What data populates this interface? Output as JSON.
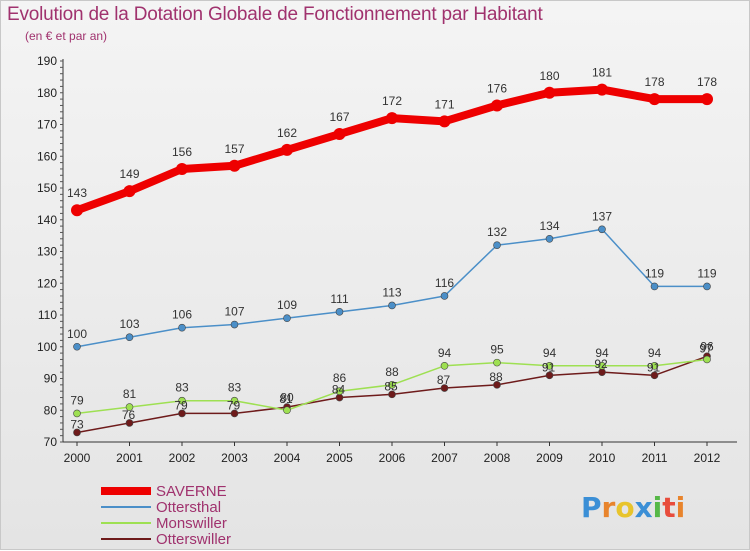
{
  "header": {
    "title": "Evolution de la Dotation Globale de Fonctionnement par Habitant",
    "subtitle": "(en € et par an)"
  },
  "logo": {
    "text": "Proxiti",
    "letters": [
      "P",
      "r",
      "o",
      "x",
      "i",
      "t",
      "i"
    ],
    "colors": [
      "#3b8fd6",
      "#e8842c",
      "#e8c42c",
      "#3b8fd6",
      "#56b847",
      "#e84c3c",
      "#e8842c"
    ]
  },
  "chart_data": {
    "type": "line",
    "title": "Evolution de la Dotation Globale de Fonctionnement par Habitant",
    "subtitle": "(en € et par an)",
    "xlabel": "",
    "ylabel": "",
    "x": [
      2000,
      2001,
      2002,
      2003,
      2004,
      2005,
      2006,
      2007,
      2008,
      2009,
      2010,
      2011,
      2012
    ],
    "ylim": [
      70,
      190
    ],
    "yticks": [
      70,
      80,
      90,
      100,
      110,
      120,
      130,
      140,
      150,
      160,
      170,
      180,
      190
    ],
    "grid": false,
    "legend": "bottom-left",
    "series": [
      {
        "name": "SAVERNE",
        "color": "#ee0000",
        "values": [
          143,
          149,
          156,
          157,
          162,
          167,
          172,
          171,
          176,
          180,
          181,
          178,
          178
        ]
      },
      {
        "name": "Ottersthal",
        "color": "#4b8fc8",
        "values": [
          100,
          103,
          106,
          107,
          109,
          111,
          113,
          116,
          132,
          134,
          137,
          119,
          119
        ]
      },
      {
        "name": "Monswiller",
        "color": "#9ee052",
        "values": [
          79,
          81,
          83,
          83,
          80,
          86,
          88,
          94,
          95,
          94,
          94,
          94,
          96
        ]
      },
      {
        "name": "Otterswiller",
        "color": "#6e1b1b",
        "values": [
          73,
          76,
          79,
          79,
          81,
          84,
          85,
          87,
          88,
          91,
          92,
          91,
          97
        ]
      }
    ]
  }
}
